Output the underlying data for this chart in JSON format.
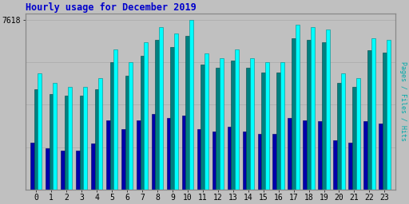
{
  "title": "Hourly usage for December 2019",
  "ylabel_right": "Pages / Files / Hits",
  "hours": [
    0,
    1,
    2,
    3,
    4,
    5,
    6,
    7,
    8,
    9,
    10,
    11,
    12,
    13,
    14,
    15,
    16,
    17,
    18,
    19,
    20,
    21,
    22,
    23
  ],
  "hits": [
    5200,
    4800,
    4600,
    4600,
    5000,
    6300,
    5700,
    6600,
    7300,
    7000,
    7618,
    6100,
    5900,
    6300,
    5900,
    5700,
    5700,
    7400,
    7300,
    7200,
    5200,
    5000,
    6800,
    6700
  ],
  "files": [
    4500,
    4300,
    4200,
    4200,
    4500,
    5700,
    5100,
    6000,
    6700,
    6400,
    6900,
    5600,
    5450,
    5800,
    5450,
    5250,
    5250,
    6800,
    6700,
    6600,
    4800,
    4600,
    6250,
    6150
  ],
  "pages": [
    2100,
    1850,
    1750,
    1750,
    2050,
    3100,
    2700,
    3100,
    3400,
    3200,
    3300,
    2700,
    2600,
    2800,
    2600,
    2500,
    2500,
    3200,
    3100,
    3050,
    2200,
    2100,
    3050,
    2950
  ],
  "hits_color": "#00ffff",
  "files_color": "#008080",
  "pages_color": "#0000aa",
  "hits_edge": "#008888",
  "files_edge": "#004444",
  "pages_edge": "#000066",
  "background_color": "#c0c0c0",
  "plot_bg": "#c0c0c0",
  "title_color": "#0000cc",
  "ylabel_color": "#00aaaa",
  "ytick_label": "7618",
  "ymax": 7900,
  "bar_width": 0.25,
  "grid_color": "#aaaaaa",
  "grid_levels": [
    1900,
    3800,
    5700,
    7618
  ]
}
